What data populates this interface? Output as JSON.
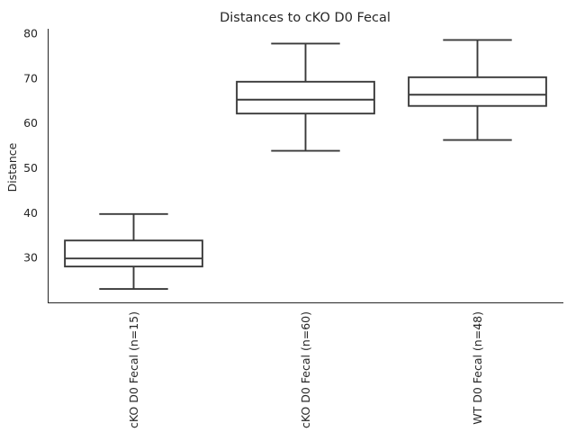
{
  "chart_data": {
    "type": "box",
    "title": "Distances to cKO D0 Fecal",
    "xlabel": "",
    "ylabel": "Distance",
    "ylim": [
      20,
      81
    ],
    "yticks": [
      30,
      40,
      50,
      60,
      70,
      80
    ],
    "categories": [
      "cKO D0 Fecal (n=15)",
      "cKO D0 Fecal (n=60)",
      "WT D0 Fecal (n=48)"
    ],
    "boxes": [
      {
        "category": "cKO D0 Fecal (n=15)",
        "whisker_low": 23,
        "q1": 28,
        "median": 29.8,
        "q3": 33.8,
        "whisker_high": 39.7
      },
      {
        "category": "cKO D0 Fecal (n=60)",
        "whisker_low": 53.8,
        "q1": 62.1,
        "median": 65.2,
        "q3": 69.2,
        "whisker_high": 77.7
      },
      {
        "category": "WT D0 Fecal (n=48)",
        "whisker_low": 56.2,
        "q1": 63.8,
        "median": 66.3,
        "q3": 70.2,
        "whisker_high": 78.5
      }
    ],
    "box_color": "#ffffff",
    "line_color": "#3a3a3a",
    "grid": false,
    "legend": "none"
  }
}
